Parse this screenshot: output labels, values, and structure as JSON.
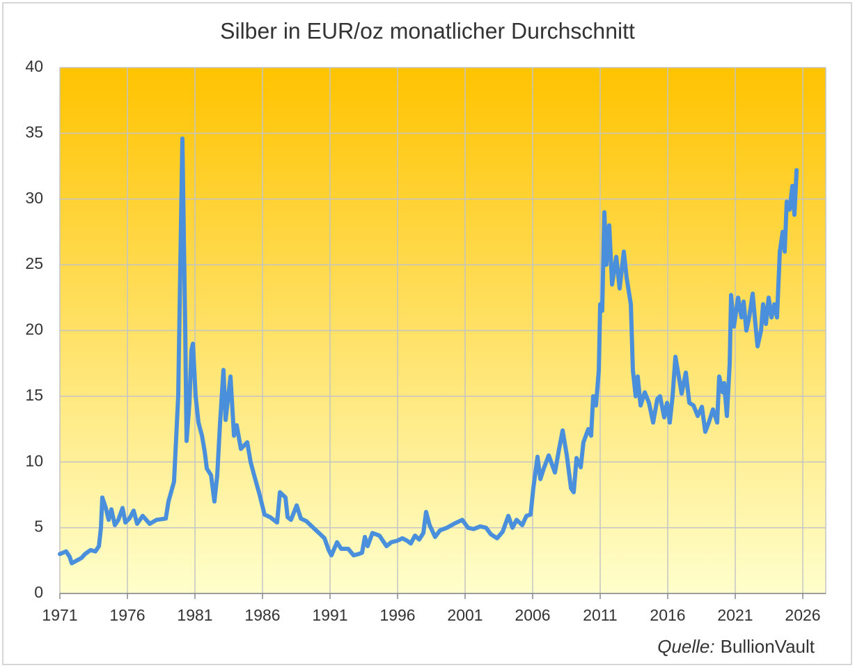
{
  "chart_data": {
    "type": "line",
    "title": "Silber in EUR/oz monatlicher Durchschnitt",
    "source_label": "Quelle:",
    "source": "BullionVault",
    "color": "#4a8fdc",
    "background_top": "#ffc300",
    "background_bottom": "#ffffcc",
    "grid": true,
    "xlim": [
      1971,
      2027.7
    ],
    "xticks": [
      1971,
      1976,
      1981,
      1986,
      1991,
      1996,
      2001,
      2006,
      2011,
      2016,
      2021,
      2026
    ],
    "ylim": [
      0,
      40
    ],
    "yticks": [
      0,
      5,
      10,
      15,
      20,
      25,
      30,
      35,
      40
    ],
    "x": [
      1971.0,
      1971.46,
      1971.72,
      1971.88,
      1972.24,
      1972.6,
      1972.86,
      1973.27,
      1973.63,
      1973.89,
      1974.04,
      1974.14,
      1974.4,
      1974.61,
      1974.81,
      1975.07,
      1975.33,
      1975.64,
      1975.85,
      1976.15,
      1976.46,
      1976.72,
      1977.13,
      1977.65,
      1978.16,
      1978.84,
      1979.04,
      1979.45,
      1979.76,
      1980.07,
      1980.28,
      1980.38,
      1980.59,
      1980.74,
      1980.85,
      1981.05,
      1981.26,
      1981.52,
      1981.72,
      1981.88,
      1982.19,
      1982.44,
      1982.65,
      1982.86,
      1983.11,
      1983.27,
      1983.63,
      1983.89,
      1984.09,
      1984.4,
      1984.87,
      1985.12,
      1985.38,
      1985.79,
      1986.15,
      1986.57,
      1987.08,
      1987.29,
      1987.7,
      1987.86,
      1988.11,
      1988.53,
      1988.84,
      1989.25,
      1989.76,
      1990.18,
      1990.59,
      1990.9,
      1991.1,
      1991.52,
      1991.82,
      1992.34,
      1992.75,
      1993.11,
      1993.37,
      1993.58,
      1993.78,
      1994.14,
      1994.66,
      1995.18,
      1995.54,
      1995.95,
      1996.36,
      1996.72,
      1996.98,
      1997.29,
      1997.6,
      1997.91,
      1998.11,
      1998.37,
      1998.78,
      1999.14,
      1999.66,
      2000.18,
      2000.79,
      2001.21,
      2001.62,
      2002.13,
      2002.55,
      2002.91,
      2003.37,
      2003.78,
      2004.2,
      2004.51,
      2004.81,
      2005.23,
      2005.54,
      2005.85,
      2006.05,
      2006.36,
      2006.57,
      2006.82,
      2007.19,
      2007.65,
      2007.96,
      2008.22,
      2008.53,
      2008.84,
      2009.04,
      2009.25,
      2009.56,
      2009.76,
      2010.12,
      2010.33,
      2010.48,
      2010.69,
      2010.9,
      2011.0,
      2011.15,
      2011.31,
      2011.46,
      2011.67,
      2011.88,
      2012.19,
      2012.44,
      2012.75,
      2012.96,
      2013.27,
      2013.42,
      2013.63,
      2013.78,
      2013.99,
      2014.3,
      2014.61,
      2014.92,
      2015.23,
      2015.43,
      2015.74,
      2015.95,
      2016.15,
      2016.36,
      2016.57,
      2016.82,
      2017.03,
      2017.34,
      2017.6,
      2017.91,
      2018.22,
      2018.53,
      2018.78,
      2019.04,
      2019.35,
      2019.66,
      2019.81,
      2020.07,
      2020.18,
      2020.38,
      2020.59,
      2020.69,
      2020.9,
      2021.21,
      2021.46,
      2021.62,
      2021.82,
      2022.03,
      2022.29,
      2022.49,
      2022.65,
      2022.91,
      2023.06,
      2023.27,
      2023.47,
      2023.68,
      2023.89,
      2024.09,
      2024.3,
      2024.51,
      2024.66,
      2024.81,
      2025.02,
      2025.23,
      2025.38,
      2025.54
    ],
    "values": [
      3.0,
      3.2,
      2.8,
      2.3,
      2.5,
      2.7,
      3.0,
      3.3,
      3.2,
      3.6,
      5.0,
      7.3,
      6.5,
      5.6,
      6.4,
      5.2,
      5.6,
      6.5,
      5.4,
      5.7,
      6.3,
      5.3,
      5.9,
      5.3,
      5.6,
      5.7,
      7.0,
      8.5,
      15.0,
      34.6,
      20.0,
      11.6,
      14.5,
      18.5,
      19.0,
      15.0,
      13.0,
      12.0,
      10.8,
      9.5,
      9.0,
      7.0,
      9.0,
      13.0,
      17.0,
      13.2,
      16.5,
      12.0,
      12.8,
      11.0,
      11.5,
      10.0,
      9.0,
      7.5,
      6.0,
      5.8,
      5.4,
      7.7,
      7.3,
      5.8,
      5.6,
      6.7,
      5.7,
      5.5,
      5.0,
      4.6,
      4.2,
      3.3,
      2.9,
      3.9,
      3.4,
      3.4,
      2.9,
      3.0,
      3.1,
      4.3,
      3.6,
      4.6,
      4.4,
      3.6,
      3.9,
      4.0,
      4.2,
      4.0,
      3.8,
      4.4,
      4.1,
      4.6,
      6.2,
      5.2,
      4.3,
      4.8,
      5.0,
      5.3,
      5.6,
      5.0,
      4.9,
      5.1,
      5.0,
      4.5,
      4.2,
      4.7,
      5.9,
      5.0,
      5.6,
      5.2,
      5.9,
      6.0,
      8.0,
      10.4,
      8.7,
      9.5,
      10.5,
      9.2,
      11.0,
      12.4,
      10.5,
      8.0,
      7.7,
      10.3,
      9.6,
      11.5,
      12.5,
      12.0,
      15.0,
      14.3,
      17.0,
      22.0,
      21.5,
      29.0,
      25.0,
      28.0,
      23.5,
      25.6,
      23.2,
      26.0,
      24.0,
      22.0,
      17.0,
      15.0,
      16.5,
      14.3,
      15.3,
      14.5,
      13.0,
      14.8,
      15.0,
      13.4,
      14.5,
      13.0,
      15.0,
      18.0,
      16.5,
      15.2,
      16.8,
      14.5,
      14.3,
      13.5,
      14.2,
      12.3,
      13.0,
      14.0,
      13.0,
      16.5,
      15.3,
      16.0,
      13.5,
      17.5,
      22.7,
      20.3,
      22.5,
      21.0,
      22.2,
      20.0,
      21.0,
      22.8,
      20.5,
      18.8,
      20.0,
      22.0,
      20.5,
      22.5,
      21.0,
      22.0,
      21.0,
      26.0,
      27.5,
      26.0,
      29.8,
      29.2,
      31.0,
      28.8,
      32.2
    ]
  }
}
